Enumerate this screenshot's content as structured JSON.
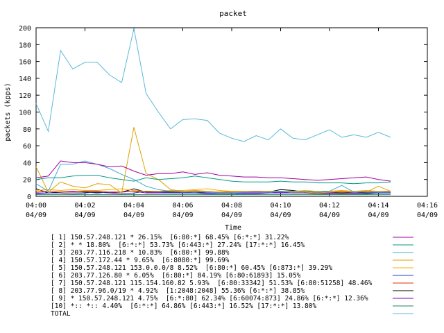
{
  "chart_data": {
    "type": "line",
    "title": "packet",
    "xlabel": "Time",
    "ylabel": "packets (kpps)",
    "ylim": [
      0,
      200
    ],
    "yticks": [
      0,
      20,
      40,
      60,
      80,
      100,
      120,
      140,
      160,
      180,
      200
    ],
    "xticks": [
      {
        "time": "04:00",
        "date": "04/09"
      },
      {
        "time": "04:02",
        "date": "04/09"
      },
      {
        "time": "04:04",
        "date": "04/09"
      },
      {
        "time": "04:06",
        "date": "04/09"
      },
      {
        "time": "04:08",
        "date": "04/09"
      },
      {
        "time": "04:10",
        "date": "04/09"
      },
      {
        "time": "04:12",
        "date": "04/09"
      },
      {
        "time": "04:14",
        "date": "04/09"
      },
      {
        "time": "04:16",
        "date": "04/09"
      }
    ],
    "xlim_minutes": [
      0,
      16
    ],
    "grid": false,
    "legend_placement": "bottom",
    "x": [
      0,
      0.5,
      1,
      1.5,
      2,
      2.5,
      3,
      3.5,
      4,
      4.5,
      5,
      5.5,
      6,
      6.5,
      7,
      7.5,
      8,
      8.5,
      9,
      9.5,
      10,
      10.5,
      11,
      11.5,
      12,
      12.5,
      13,
      13.5,
      14,
      14.5
    ],
    "series": [
      {
        "name": "[ 1] 150.57.248.121 * 26.15%  [6:80:*] 68.45% [6:*:*] 31.22%",
        "color": "#a000a0",
        "values": [
          22,
          24,
          42,
          40,
          40,
          38,
          35,
          36,
          30,
          25,
          27,
          27,
          29,
          26,
          28,
          25,
          24,
          23,
          23,
          22,
          22,
          21,
          20,
          19,
          20,
          21,
          22,
          23,
          20,
          18
        ]
      },
      {
        "name": "[ 2] * * 18.80%  [6:*:*] 53.73% [6:443:*] 27.24% [17:*:*] 16.45%",
        "color": "#009a80",
        "values": [
          20,
          22,
          22,
          24,
          25,
          25,
          22,
          20,
          18,
          22,
          20,
          21,
          22,
          24,
          22,
          20,
          18,
          17,
          17,
          17,
          18,
          17,
          17,
          16,
          16,
          16,
          15,
          16,
          16,
          17
        ]
      },
      {
        "name": "[ 3] 203.77.116.218 * 10.83%  [6:80:*] 99.88%",
        "color": "#40a8d8",
        "values": [
          15,
          6,
          38,
          38,
          42,
          38,
          33,
          26,
          20,
          12,
          8,
          6,
          5,
          5,
          5,
          4,
          4,
          5,
          5,
          5,
          6,
          6,
          6,
          5,
          6,
          13,
          5,
          5,
          5,
          5
        ]
      },
      {
        "name": "[ 4] 150.57.172.44 * 9.65%  [6:8080:*] 99.69%",
        "color": "#e0a000",
        "values": [
          35,
          5,
          17,
          12,
          10,
          15,
          14,
          4,
          82,
          27,
          20,
          8,
          6,
          7,
          6,
          5,
          5,
          5,
          5,
          6,
          6,
          5,
          5,
          4,
          5,
          5,
          5,
          5,
          12,
          6
        ]
      },
      {
        "name": "[ 5] 150.57.248.121 153.0.0.0/8 8.52%  [6:80:*] 60.45% [6:873:*] 39.29%",
        "color": "#f0b000",
        "values": [
          7,
          8,
          7,
          8,
          7,
          7,
          8,
          9,
          7,
          6,
          6,
          7,
          7,
          8,
          9,
          7,
          6,
          6,
          5,
          5,
          6,
          6,
          7,
          6,
          6,
          7,
          6,
          7,
          6,
          5
        ]
      },
      {
        "name": "[ 6] 203.77.126.80 * 6.05%  [6:80:*] 84.19% [6:80:61893] 15.05%",
        "color": "#2040c0",
        "values": [
          3,
          4,
          4,
          3,
          4,
          5,
          4,
          3,
          4,
          6,
          5,
          4,
          4,
          4,
          3,
          3,
          3,
          3,
          3,
          4,
          5,
          4,
          4,
          3,
          3,
          3,
          3,
          3,
          4,
          4
        ]
      },
      {
        "name": "[ 7] 150.57.248.121 115.154.160.82 5.93%  [6:80:33342] 51.53% [6:80:51258] 48.46%",
        "color": "#e03000",
        "values": [
          5,
          6,
          5,
          5,
          6,
          6,
          5,
          5,
          6,
          6,
          6,
          6,
          6,
          6,
          5,
          5,
          6,
          6,
          6,
          6,
          6,
          6,
          6,
          6,
          6,
          6,
          6,
          6,
          6,
          6
        ]
      },
      {
        "name": "[ 8] 203.77.96.0/19 * 4.92%  [1:2048:2048] 55.36% [6:*:*] 38.85%",
        "color": "#000000",
        "values": [
          9,
          4,
          5,
          5,
          5,
          4,
          5,
          5,
          9,
          5,
          5,
          5,
          5,
          4,
          5,
          5,
          5,
          5,
          5,
          5,
          8,
          7,
          5,
          5,
          5,
          4,
          5,
          4,
          4,
          4
        ]
      },
      {
        "name": "[ 9] * 150.57.248.121 4.75%  [6:*:80] 62.34% [6:60074:873] 24.86% [6:*:*] 12.36%",
        "color": "#8000c0",
        "values": [
          4,
          4,
          5,
          6,
          5,
          5,
          4,
          5,
          6,
          4,
          4,
          4,
          4,
          4,
          4,
          4,
          4,
          4,
          4,
          4,
          4,
          4,
          4,
          4,
          4,
          4,
          4,
          4,
          4,
          4
        ]
      },
      {
        "name": "[10] *:: *:: 4.40%  [6:*:*] 64.86% [6:443:*] 16.52% [17:*:*] 13.80%",
        "color": "#208060",
        "values": [
          2,
          2,
          2,
          2,
          2,
          2,
          2,
          2,
          2,
          2,
          2,
          2,
          2,
          2,
          2,
          2,
          2,
          2,
          2,
          2,
          2,
          2,
          2,
          2,
          2,
          2,
          2,
          2,
          2,
          2
        ]
      },
      {
        "name": "TOTAL",
        "color": "#58b8d8",
        "values": [
          110,
          77,
          173,
          151,
          159,
          159,
          144,
          135,
          199,
          122,
          100,
          80,
          91,
          92,
          90,
          75,
          69,
          65,
          72,
          67,
          80,
          69,
          67,
          73,
          79,
          70,
          73,
          70,
          76,
          70
        ]
      }
    ]
  }
}
